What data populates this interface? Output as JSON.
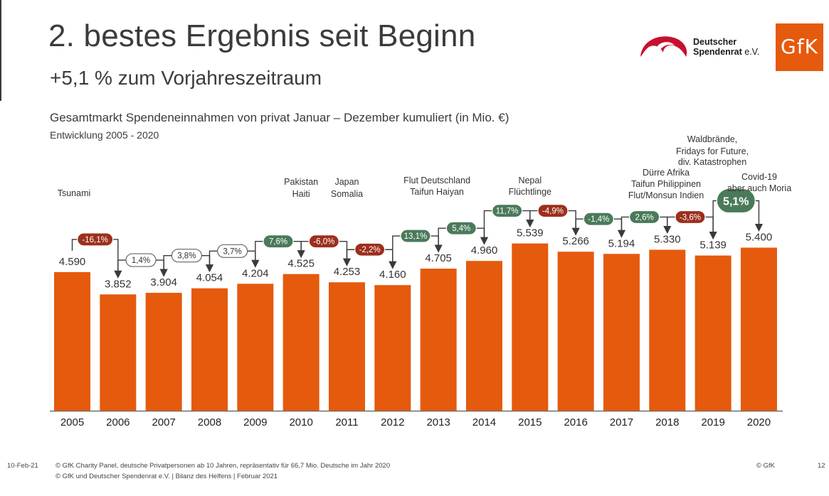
{
  "header": {
    "title": "2. bestes Ergebnis seit Beginn",
    "subtitle": "+5,1 % zum Vorjahreszeitraum"
  },
  "logos": {
    "dsr_line1": "Deutscher",
    "dsr_line2": "Spendenrat",
    "dsr_suffix": "e.V.",
    "gfk": "GfK"
  },
  "colors": {
    "bar": "#e55a0d",
    "positive": "#4a7a5a",
    "negative": "#9c2f1c",
    "neutral_outline": "#666666"
  },
  "chart_data": {
    "type": "bar",
    "title": "Gesamtmarkt Spendeneinnahmen von privat Januar – Dezember kumuliert (in Mio. €)",
    "subtitle": "Entwicklung 2005 - 2020",
    "categories": [
      "2005",
      "2006",
      "2007",
      "2008",
      "2009",
      "2010",
      "2011",
      "2012",
      "2013",
      "2014",
      "2015",
      "2016",
      "2017",
      "2018",
      "2019",
      "2020"
    ],
    "values": [
      4590,
      3852,
      3904,
      4054,
      4204,
      4525,
      4253,
      4160,
      4705,
      4960,
      5539,
      5266,
      5194,
      5330,
      5139,
      5400
    ],
    "value_labels": [
      "4.590",
      "3.852",
      "3.904",
      "4.054",
      "4.204",
      "4.525",
      "4.253",
      "4.160",
      "4.705",
      "4.960",
      "5.539",
      "5.266",
      "5.194",
      "5.330",
      "5.139",
      "5.400"
    ],
    "changes": [
      {
        "label": "-16,1%",
        "type": "negative"
      },
      {
        "label": "1,4%",
        "type": "neutral"
      },
      {
        "label": "3,8%",
        "type": "neutral"
      },
      {
        "label": "3,7%",
        "type": "neutral"
      },
      {
        "label": "7,6%",
        "type": "positive"
      },
      {
        "label": "-6,0%",
        "type": "negative"
      },
      {
        "label": "-2,2%",
        "type": "negative"
      },
      {
        "label": "13,1%",
        "type": "positive"
      },
      {
        "label": "5,4%",
        "type": "positive"
      },
      {
        "label": "11,7%",
        "type": "positive"
      },
      {
        "label": "-4,9%",
        "type": "negative"
      },
      {
        "label": "-1,4%",
        "type": "positive"
      },
      {
        "label": "2,6%",
        "type": "positive"
      },
      {
        "label": "-3,6%",
        "type": "negative"
      },
      {
        "label": "5,1%",
        "type": "positive",
        "highlight": true
      }
    ],
    "annotations": [
      {
        "year": "2005",
        "lines": [
          "Tsunami"
        ]
      },
      {
        "year": "2010",
        "lines": [
          "Pakistan",
          "Haiti"
        ]
      },
      {
        "year": "2011",
        "lines": [
          "Japan",
          "Somalia"
        ]
      },
      {
        "year": "2013",
        "lines": [
          "Flut Deutschland",
          "Taifun Haiyan"
        ]
      },
      {
        "year": "2015",
        "lines": [
          "Nepal",
          "Flüchtlinge"
        ]
      },
      {
        "year": "2018",
        "lines": [
          "Dürre Afrika",
          "Taifun Philippinen",
          "Flut/Monsun Indien"
        ]
      },
      {
        "year": "2019",
        "lines": [
          "Waldbrände,",
          "Fridays for Future,",
          "div. Katastrophen"
        ]
      },
      {
        "year": "2020",
        "lines": [
          "Covid-19",
          "aber auch Moria"
        ]
      }
    ],
    "ylim": [
      0,
      6000
    ],
    "grid": false,
    "legend": "none"
  },
  "footer": {
    "date": "10-Feb-21",
    "source1": "© GfK Charity Panel, deutsche Privatpersonen ab 10 Jahren, repräsentativ für 66,7 Mio. Deutsche im Jahr 2020",
    "source2": "© GfK und Deutscher Spendenrat e.V. | Bilanz des Helfens | Februar 2021",
    "copyright": "© GfK",
    "page": "12"
  }
}
